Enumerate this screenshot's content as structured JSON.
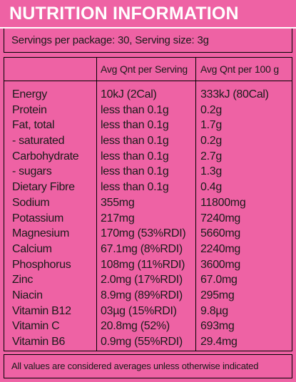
{
  "title": "NUTRITION INFORMATION",
  "servings": "Servings per package: 30, Serving size: 3g",
  "headers": {
    "per_serving": "Avg Qnt per Serving",
    "per_100g": "Avg Qnt per 100 g"
  },
  "rows": [
    {
      "name": "Energy",
      "per_serving": "10kJ (2Cal)",
      "per_100g": "333kJ (80Cal)"
    },
    {
      "name": "Protein",
      "per_serving": "less than 0.1g",
      "per_100g": "0.2g"
    },
    {
      "name": "Fat, total",
      "per_serving": "less than 0.1g",
      "per_100g": "1.7g"
    },
    {
      "name": "- saturated",
      "per_serving": "less than 0.1g",
      "per_100g": "0.2g"
    },
    {
      "name": "Carbohydrate",
      "per_serving": "less than 0.1g",
      "per_100g": "2.7g"
    },
    {
      "name": "- sugars",
      "per_serving": "less than 0.1g",
      "per_100g": "1.3g"
    },
    {
      "name": "Dietary Fibre",
      "per_serving": "less than 0.1g",
      "per_100g": "0.4g"
    },
    {
      "name": "Sodium",
      "per_serving": "355mg",
      "per_100g": "11800mg"
    },
    {
      "name": "Potassium",
      "per_serving": "217mg",
      "per_100g": "7240mg"
    },
    {
      "name": "Magnesium",
      "per_serving": "170mg (53%RDI)",
      "per_100g": "5660mg"
    },
    {
      "name": "Calcium",
      "per_serving": "67.1mg (8%RDI)",
      "per_100g": "2240mg"
    },
    {
      "name": "Phosphorus",
      "per_serving": "108mg (11%RDI)",
      "per_100g": "3600mg"
    },
    {
      "name": "Zinc",
      "per_serving": "2.0mg (17%RDI)",
      "per_100g": "67.0mg"
    },
    {
      "name": "Niacin",
      "per_serving": "8.9mg (89%RDI)",
      "per_100g": "295mg"
    },
    {
      "name": "Vitamin B12",
      "per_serving": "03µg (15%RDI)",
      "per_100g": "9.8µg"
    },
    {
      "name": "Vitamin C",
      "per_serving": "20.8mg (52%)",
      "per_100g": "693mg"
    },
    {
      "name": "Vitamin B6",
      "per_serving": "0.9mg (55%RDI)",
      "per_100g": "29.4mg"
    }
  ],
  "footer": "All values are considered averages unless otherwise indicated",
  "colors": {
    "background": "#ee62a4",
    "text": "#1a1a1a",
    "title": "#ffffff"
  }
}
